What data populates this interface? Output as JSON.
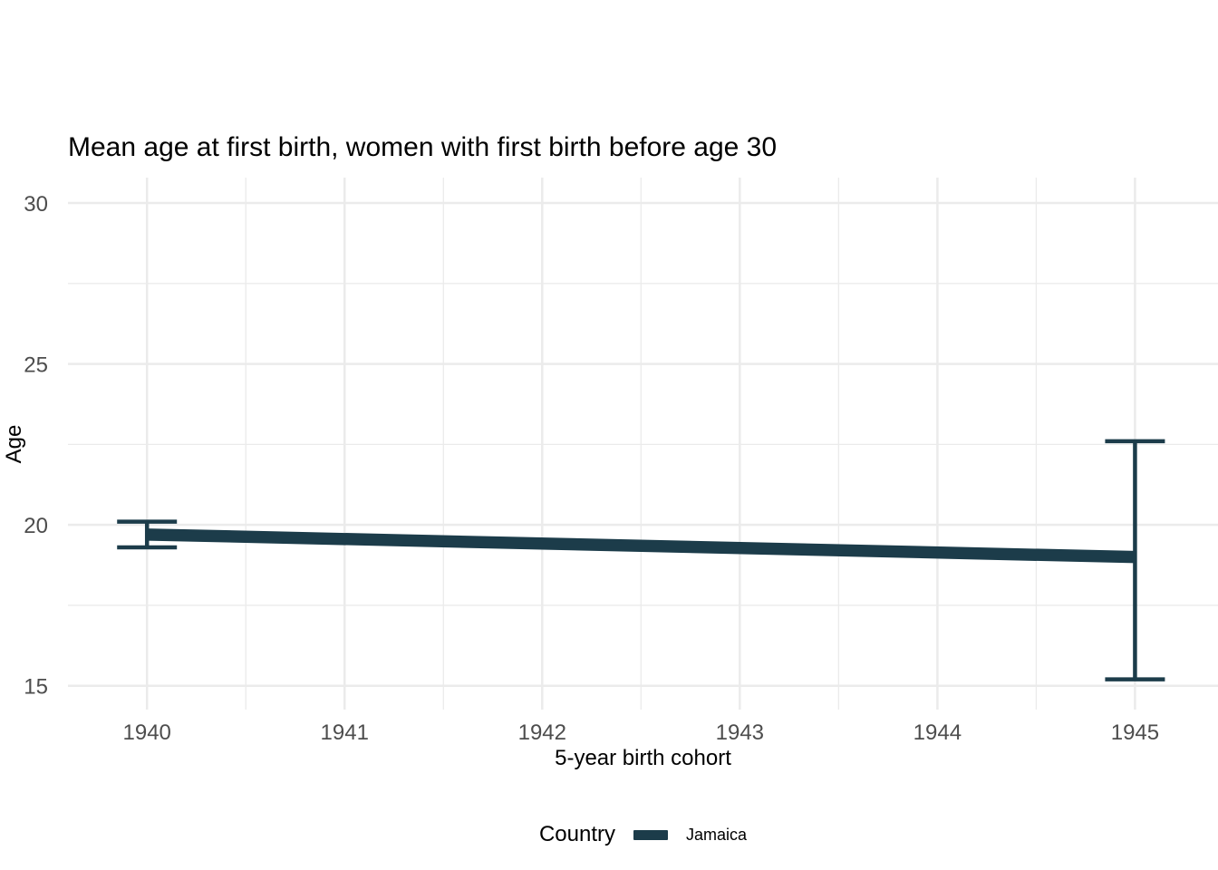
{
  "colors": {
    "background": "#ffffff",
    "grid": "#ebebeb",
    "tick_label": "#4d4d4d",
    "text": "#000000",
    "accent": "#1c3c4a"
  },
  "chart_data": {
    "type": "line",
    "title": "Mean age at first birth, women with first birth before age 30",
    "xlabel": "5-year birth cohort",
    "ylabel": "Age",
    "legend_title": "Country",
    "legend_position": "bottom",
    "grid": true,
    "x_ticks": [
      1940,
      1941,
      1942,
      1943,
      1944,
      1945
    ],
    "x_minor_ticks": [
      1940.5,
      1941.5,
      1942.5,
      1943.5,
      1944.5
    ],
    "y_ticks": [
      15,
      20,
      25,
      30
    ],
    "y_minor_ticks": [
      17.5,
      22.5,
      27.5
    ],
    "x_range": [
      1939.6,
      1945.42
    ],
    "y_range": [
      14.26,
      30.79
    ],
    "series": [
      {
        "name": "Jamaica",
        "color": "#1c3c4a",
        "points": [
          {
            "x": 1940,
            "y": 19.7,
            "ci_low": 19.3,
            "ci_high": 20.1
          },
          {
            "x": 1945,
            "y": 19.0,
            "ci_low": 15.2,
            "ci_high": 22.6
          }
        ]
      }
    ]
  }
}
